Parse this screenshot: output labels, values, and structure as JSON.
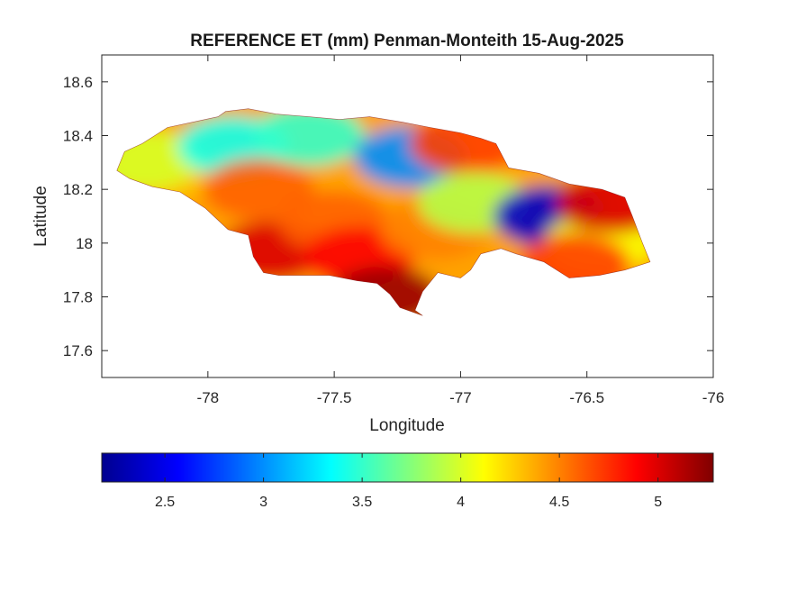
{
  "chart_data": {
    "type": "heatmap",
    "title": "REFERENCE ET (mm) Penman-Monteith 15-Aug-2025",
    "xlabel": "Longitude",
    "ylabel": "Latitude",
    "xlim": [
      -78.42,
      -76.0
    ],
    "ylim": [
      17.5,
      18.7
    ],
    "xticks": [
      -78,
      -77.5,
      -77,
      -76.5,
      -76
    ],
    "xtick_labels": [
      "-78",
      "-77.5",
      "-77",
      "-76.5",
      "-76"
    ],
    "yticks": [
      17.6,
      17.8,
      18.0,
      18.2,
      18.4,
      18.6
    ],
    "ytick_labels": [
      "17.6",
      "17.8",
      "18",
      "18.2",
      "18.4",
      "18.6"
    ],
    "grid": false,
    "colorbar": {
      "orientation": "horizontal",
      "placement": "bottom",
      "colormap": "jet",
      "range": [
        2.18,
        5.28
      ],
      "ticks": [
        2.5,
        3,
        3.5,
        4,
        4.5,
        5
      ],
      "tick_labels": [
        "2.5",
        "3",
        "3.5",
        "4",
        "4.5",
        "5"
      ]
    },
    "region_outline": [
      [
        -78.36,
        18.27
      ],
      [
        -78.33,
        18.34
      ],
      [
        -78.26,
        18.37
      ],
      [
        -78.16,
        18.43
      ],
      [
        -78.06,
        18.45
      ],
      [
        -77.96,
        18.47
      ],
      [
        -77.93,
        18.49
      ],
      [
        -77.84,
        18.5
      ],
      [
        -77.73,
        18.48
      ],
      [
        -77.6,
        18.47
      ],
      [
        -77.48,
        18.46
      ],
      [
        -77.36,
        18.47
      ],
      [
        -77.23,
        18.45
      ],
      [
        -77.12,
        18.43
      ],
      [
        -77.0,
        18.41
      ],
      [
        -76.92,
        18.39
      ],
      [
        -76.86,
        18.37
      ],
      [
        -76.81,
        18.28
      ],
      [
        -76.69,
        18.26
      ],
      [
        -76.57,
        18.22
      ],
      [
        -76.44,
        18.2
      ],
      [
        -76.35,
        18.17
      ],
      [
        -76.32,
        18.1
      ],
      [
        -76.28,
        18.0
      ],
      [
        -76.25,
        17.93
      ],
      [
        -76.35,
        17.9
      ],
      [
        -76.45,
        17.88
      ],
      [
        -76.57,
        17.87
      ],
      [
        -76.67,
        17.93
      ],
      [
        -76.78,
        17.96
      ],
      [
        -76.84,
        17.98
      ],
      [
        -76.92,
        17.96
      ],
      [
        -76.96,
        17.9
      ],
      [
        -77.0,
        17.87
      ],
      [
        -77.09,
        17.89
      ],
      [
        -77.15,
        17.82
      ],
      [
        -77.18,
        17.75
      ],
      [
        -77.15,
        17.73
      ],
      [
        -77.24,
        17.76
      ],
      [
        -77.28,
        17.81
      ],
      [
        -77.33,
        17.85
      ],
      [
        -77.41,
        17.86
      ],
      [
        -77.52,
        17.88
      ],
      [
        -77.72,
        17.88
      ],
      [
        -77.78,
        17.89
      ],
      [
        -77.82,
        17.95
      ],
      [
        -77.84,
        18.03
      ],
      [
        -77.92,
        18.05
      ],
      [
        -78.01,
        18.13
      ],
      [
        -78.11,
        18.19
      ],
      [
        -78.22,
        18.21
      ],
      [
        -78.31,
        18.24
      ],
      [
        -78.36,
        18.27
      ]
    ],
    "value_hotspots": [
      {
        "lon": -78.15,
        "lat": 18.28,
        "value": 4.3
      },
      {
        "lon": -78.25,
        "lat": 18.31,
        "value": 4.0
      },
      {
        "lon": -77.9,
        "lat": 18.36,
        "value": 3.4
      },
      {
        "lon": -77.8,
        "lat": 18.2,
        "value": 4.6
      },
      {
        "lon": -77.75,
        "lat": 17.97,
        "value": 5.0
      },
      {
        "lon": -77.6,
        "lat": 18.4,
        "value": 3.5
      },
      {
        "lon": -77.5,
        "lat": 18.08,
        "value": 4.6
      },
      {
        "lon": -77.4,
        "lat": 17.95,
        "value": 4.9
      },
      {
        "lon": -77.3,
        "lat": 17.8,
        "value": 5.2
      },
      {
        "lon": -77.2,
        "lat": 18.32,
        "value": 3.0
      },
      {
        "lon": -77.1,
        "lat": 18.05,
        "value": 4.5
      },
      {
        "lon": -76.98,
        "lat": 18.37,
        "value": 4.7
      },
      {
        "lon": -76.95,
        "lat": 18.15,
        "value": 3.9
      },
      {
        "lon": -76.65,
        "lat": 18.1,
        "value": 2.4
      },
      {
        "lon": -76.45,
        "lat": 18.0,
        "value": 4.1
      },
      {
        "lon": -76.4,
        "lat": 18.15,
        "value": 5.0
      },
      {
        "lon": -76.55,
        "lat": 17.92,
        "value": 4.7
      }
    ]
  }
}
